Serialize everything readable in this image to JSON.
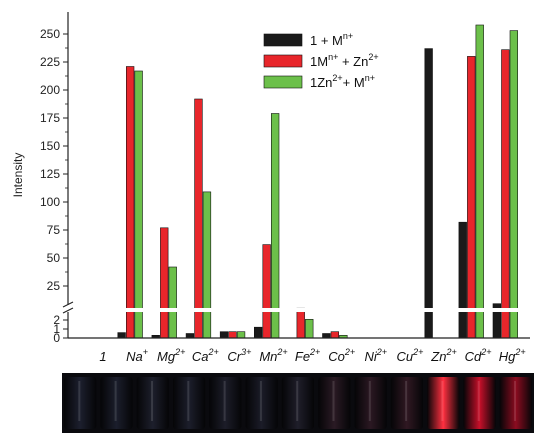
{
  "chart_data": {
    "type": "bar",
    "ylabel": "Intensity",
    "categories": [
      {
        "base": "1",
        "sup": ""
      },
      {
        "base": "Na",
        "sup": "+"
      },
      {
        "base": "Mg",
        "sup": "2+"
      },
      {
        "base": "Ca",
        "sup": "2+"
      },
      {
        "base": "Cr",
        "sup": "3+"
      },
      {
        "base": "Mn",
        "sup": "2+"
      },
      {
        "base": "Fe",
        "sup": "2+"
      },
      {
        "base": "Co",
        "sup": "2+"
      },
      {
        "base": "Ni",
        "sup": "2+"
      },
      {
        "base": "Cu",
        "sup": "2+"
      },
      {
        "base": "Zn",
        "sup": "2+"
      },
      {
        "base": "Cd",
        "sup": "2+"
      },
      {
        "base": "Hg",
        "sup": "2+"
      }
    ],
    "series": [
      {
        "name": "1 + M",
        "name_sup": "n+",
        "color": "#1a1a1a",
        "values": [
          0,
          0.6,
          0.3,
          0.5,
          0.7,
          1.2,
          0,
          0.5,
          0,
          0,
          237,
          82,
          13
        ]
      },
      {
        "name": "1M",
        "name_sup": "n+",
        "name_suffix": " + Zn",
        "name_suffix_sup": "2+",
        "color": "#e8262b",
        "values": [
          0,
          221,
          77,
          192,
          0.7,
          62,
          10,
          0.7,
          0,
          0,
          0,
          230,
          236
        ]
      },
      {
        "name": "1Zn",
        "name_sup": "2+",
        "name_suffix": "+ M",
        "name_suffix_sup": "n+",
        "color": "#6cc04a",
        "values": [
          0,
          217,
          42,
          109,
          0.7,
          179,
          2.5,
          0.3,
          0,
          0,
          0,
          258,
          253
        ]
      }
    ],
    "y_ticks_upper": [
      25,
      50,
      75,
      100,
      125,
      150,
      175,
      200,
      225,
      250
    ],
    "y_ticks_lower": [
      0,
      1,
      2
    ],
    "axis_break": true,
    "ylim": [
      0,
      265
    ],
    "legend_position": "top-right"
  },
  "vial_strip": {
    "glow_colors": [
      "#1c1f2e",
      "#1b1e2c",
      "#1d1f2c",
      "#1c1e2b",
      "#1c1d29",
      "#1b1c28",
      "#1f1e2a",
      "#2a1a24",
      "#2b1822",
      "#301822",
      "#ff3040",
      "#c8102a",
      "#8c0c20"
    ]
  }
}
